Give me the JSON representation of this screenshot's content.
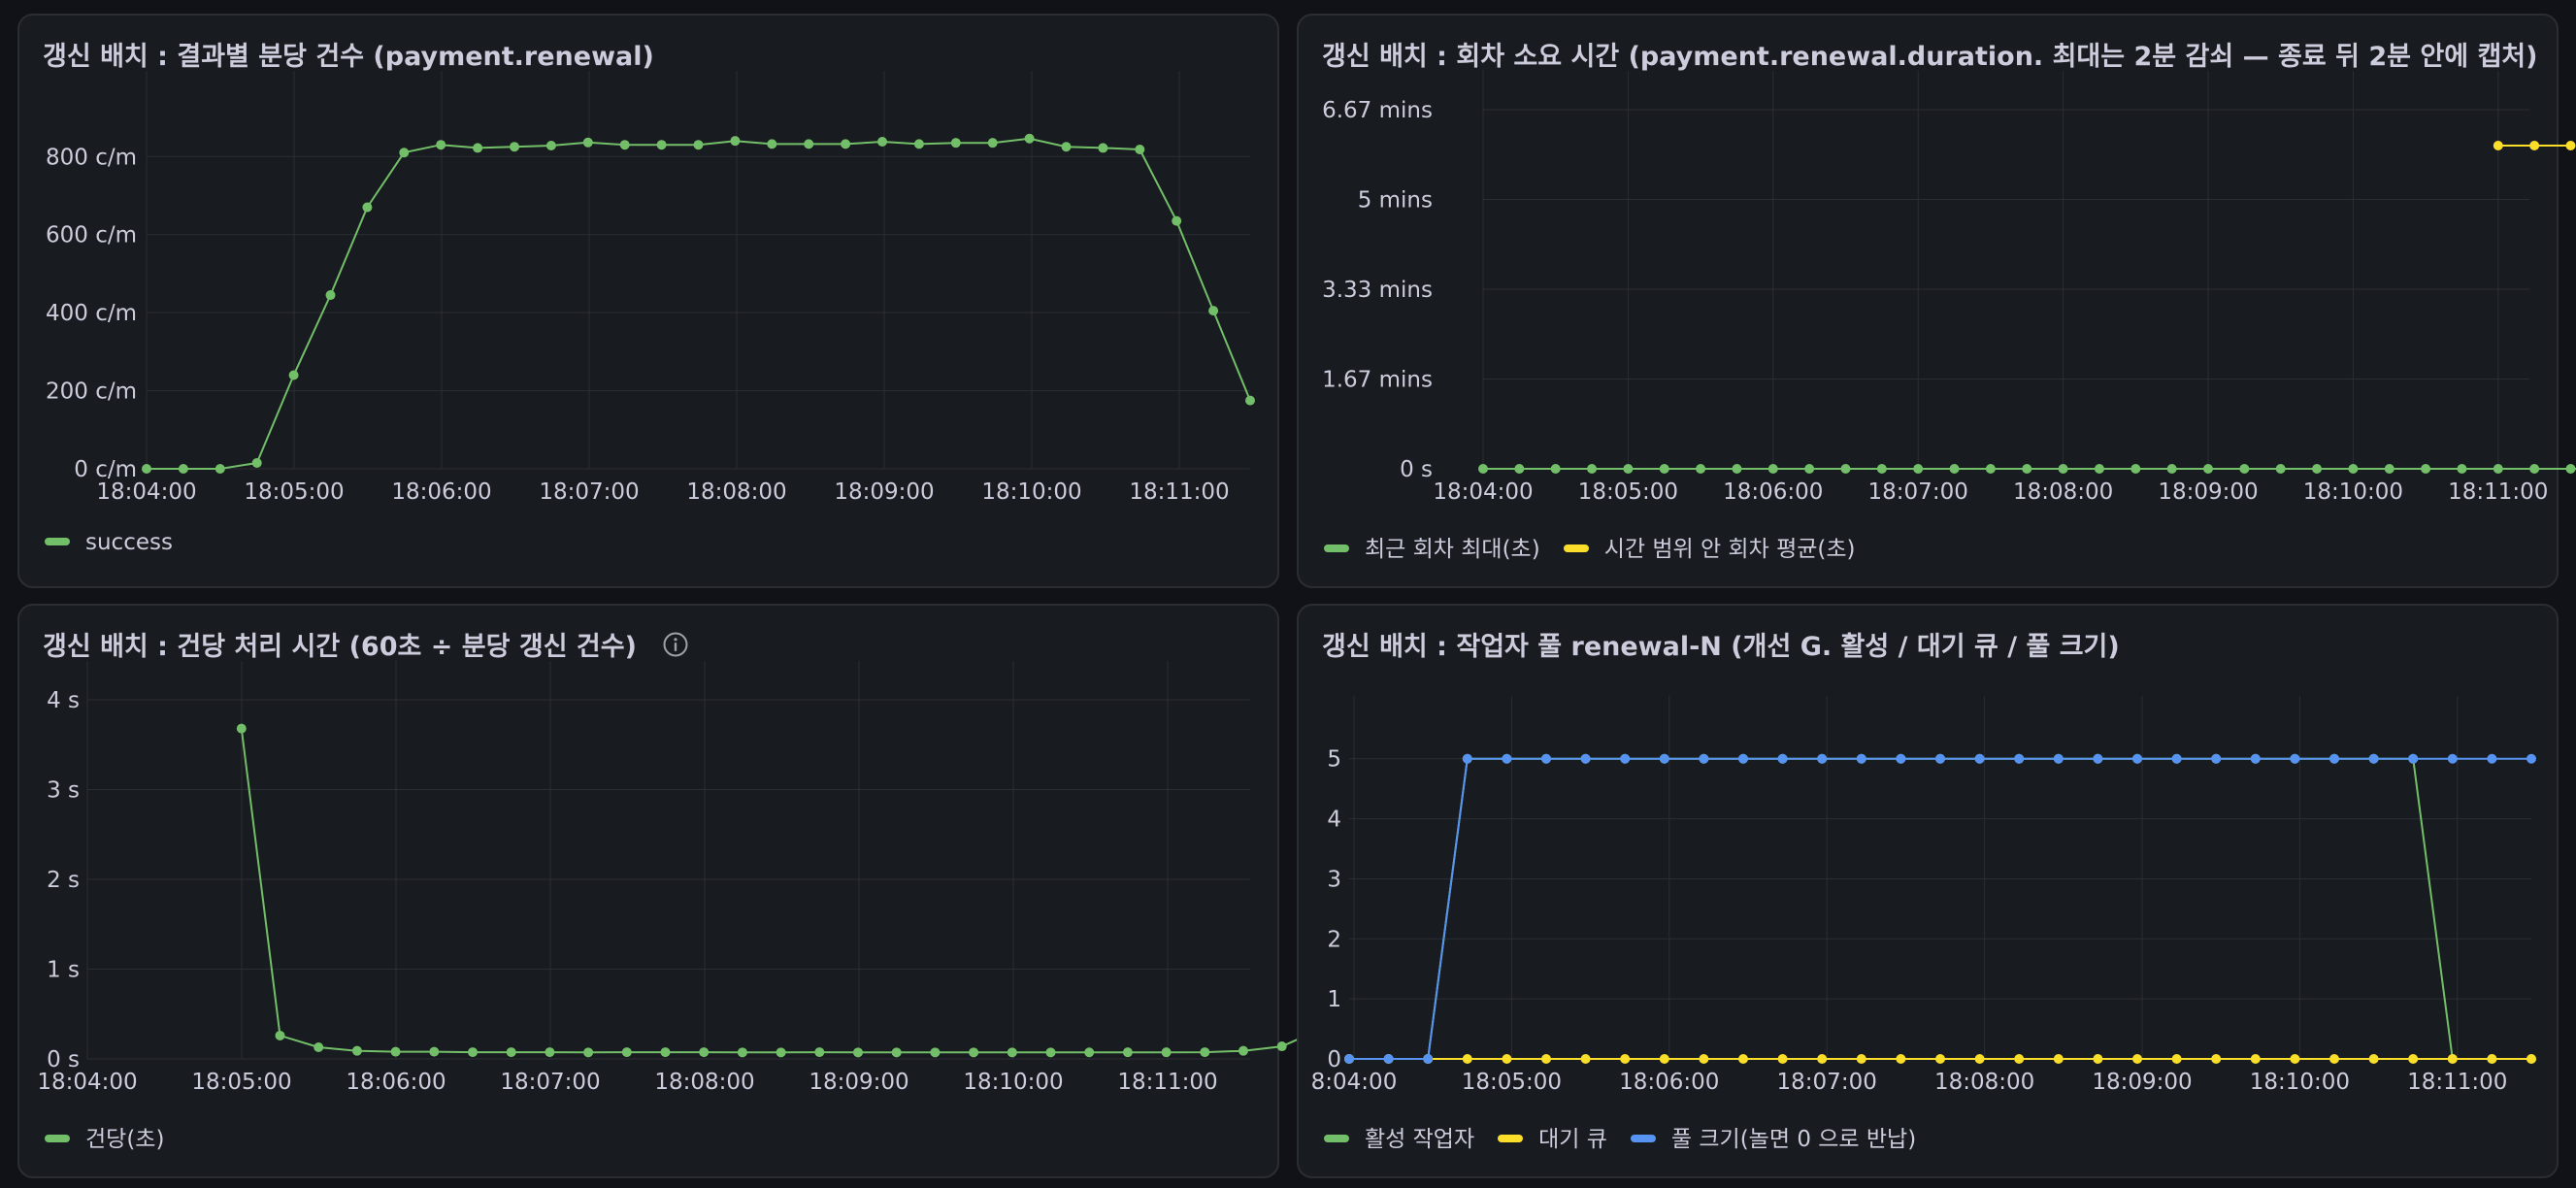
{
  "colors": {
    "green": "#73bf69",
    "yellow": "#fade2a",
    "blue": "#5794f2"
  },
  "panels": [
    {
      "id": "p1",
      "title": "갱신 배치 : 결과별 분당 건수 (payment.renewal)",
      "info_icon": false,
      "legend": [
        {
          "label": "success",
          "color": "#73bf69"
        }
      ]
    },
    {
      "id": "p2",
      "title": "갱신 배치 : 회차 소요 시간 (payment.renewal.duration. 최대는 2분 감쇠 — 종료 뒤 2분 안에 캡처)",
      "info_icon": false,
      "legend": [
        {
          "label": "최근 회차 최대(초)",
          "color": "#73bf69"
        },
        {
          "label": "시간 범위 안 회차 평균(초)",
          "color": "#fade2a"
        }
      ]
    },
    {
      "id": "p3",
      "title": "갱신 배치 : 건당 처리 시간 (60초 ÷ 분당 갱신 건수)",
      "info_icon": true,
      "legend": [
        {
          "label": "건당(초)",
          "color": "#73bf69"
        }
      ]
    },
    {
      "id": "p4",
      "title": "갱신 배치 : 작업자 풀 renewal-N (개선 G. 활성 / 대기 큐 / 풀 크기)",
      "info_icon": false,
      "legend": [
        {
          "label": "활성 작업자",
          "color": "#73bf69"
        },
        {
          "label": "대기 큐",
          "color": "#fade2a"
        },
        {
          "label": "풀 크기(놀면 0 으로 반납)",
          "color": "#5794f2"
        }
      ]
    }
  ],
  "chart_data": [
    {
      "type": "line",
      "title": "갱신 배치 : 결과별 분당 건수 (payment.renewal)",
      "x_start": "18:04:00",
      "x_step_seconds": 15,
      "x_ticks": [
        "18:04:00",
        "18:05:00",
        "18:06:00",
        "18:07:00",
        "18:08:00",
        "18:09:00",
        "18:10:00",
        "18:11:00"
      ],
      "y_ticks": [
        "0 c/m",
        "200 c/m",
        "400 c/m",
        "600 c/m",
        "800 c/m"
      ],
      "ylim": [
        0,
        920
      ],
      "grid": true,
      "series": [
        {
          "name": "success",
          "color": "#73bf69",
          "values": [
            0,
            0,
            0,
            15,
            240,
            445,
            670,
            810,
            830,
            822,
            825,
            828,
            836,
            830,
            830,
            830,
            840,
            832,
            832,
            832,
            838,
            832,
            835,
            835,
            846,
            825,
            822,
            818,
            635,
            405,
            175
          ]
        }
      ]
    },
    {
      "type": "line",
      "title": "갱신 배치 : 회차 소요 시간 (payment.renewal.duration. 최대는 2분 감쇠 — 종료 뒤 2분 안에 캡처)",
      "x_start": "18:04:00",
      "x_step_seconds": 15,
      "x_ticks": [
        "18:04:00",
        "18:05:00",
        "18:06:00",
        "18:07:00",
        "18:08:00",
        "18:09:00",
        "18:10:00",
        "18:11:00"
      ],
      "y_ticks": [
        "0 s",
        "1.67 mins",
        "3.33 mins",
        "5 mins",
        "6.67 mins"
      ],
      "ylim": [
        0,
        400
      ],
      "grid": true,
      "series": [
        {
          "name": "최근 회차 최대(초)",
          "color": "#73bf69",
          "values": [
            0,
            0,
            0,
            0,
            0,
            0,
            0,
            0,
            0,
            0,
            0,
            0,
            0,
            0,
            0,
            0,
            0,
            0,
            0,
            0,
            0,
            0,
            0,
            0,
            0,
            0,
            0,
            0,
            0,
            0,
            0,
            0
          ]
        },
        {
          "name": "시간 범위 안 회차 평균(초)",
          "color": "#fade2a",
          "x_offset": 28,
          "values": [
            360,
            360,
            360
          ]
        }
      ]
    },
    {
      "type": "line",
      "title": "갱신 배치 : 건당 처리 시간 (60초 ÷ 분당 갱신 건수)",
      "x_start": "18:04:00",
      "x_step_seconds": 15,
      "x_ticks": [
        "18:04:00",
        "18:05:00",
        "18:06:00",
        "18:07:00",
        "18:08:00",
        "18:09:00",
        "18:10:00",
        "18:11:00"
      ],
      "y_ticks": [
        "0 s",
        "1 s",
        "2 s",
        "3 s",
        "4 s"
      ],
      "ylim": [
        0,
        4
      ],
      "grid": true,
      "series": [
        {
          "name": "건당(초)",
          "color": "#73bf69",
          "x_offset": 4,
          "values": [
            3.68,
            0.26,
            0.13,
            0.09,
            0.08,
            0.08,
            0.075,
            0.075,
            0.075,
            0.072,
            0.075,
            0.075,
            0.075,
            0.072,
            0.072,
            0.075,
            0.072,
            0.072,
            0.072,
            0.072,
            0.072,
            0.072,
            0.073,
            0.074,
            0.074,
            0.075,
            0.09,
            0.14,
            0.33
          ]
        }
      ]
    },
    {
      "type": "line",
      "title": "갱신 배치 : 작업자 풀 renewal-N (개선 G. 활성 / 대기 큐 / 풀 크기)",
      "x_start": "18:03:40",
      "x_step_seconds": 15,
      "x_ticks": [
        "8:04:00",
        "18:05:00",
        "18:06:00",
        "18:07:00",
        "18:08:00",
        "18:09:00",
        "18:10:00",
        "18:11:00"
      ],
      "y_ticks": [
        "0",
        "1",
        "2",
        "3",
        "4",
        "5"
      ],
      "ylim": [
        0,
        5.4
      ],
      "grid": true,
      "series": [
        {
          "name": "활성 작업자",
          "color": "#73bf69",
          "values": [
            0,
            0,
            0,
            5,
            5,
            5,
            5,
            5,
            5,
            5,
            5,
            5,
            5,
            5,
            5,
            5,
            5,
            5,
            5,
            5,
            5,
            5,
            5,
            5,
            5,
            5,
            5,
            5,
            0,
            0,
            0
          ]
        },
        {
          "name": "대기 큐",
          "color": "#fade2a",
          "values": [
            0,
            0,
            0,
            0,
            0,
            0,
            0,
            0,
            0,
            0,
            0,
            0,
            0,
            0,
            0,
            0,
            0,
            0,
            0,
            0,
            0,
            0,
            0,
            0,
            0,
            0,
            0,
            0,
            0,
            0,
            0
          ]
        },
        {
          "name": "풀 크기(놀면 0 으로 반납)",
          "color": "#5794f2",
          "values": [
            0,
            0,
            0,
            5,
            5,
            5,
            5,
            5,
            5,
            5,
            5,
            5,
            5,
            5,
            5,
            5,
            5,
            5,
            5,
            5,
            5,
            5,
            5,
            5,
            5,
            5,
            5,
            5,
            5,
            5,
            5
          ]
        }
      ]
    }
  ]
}
